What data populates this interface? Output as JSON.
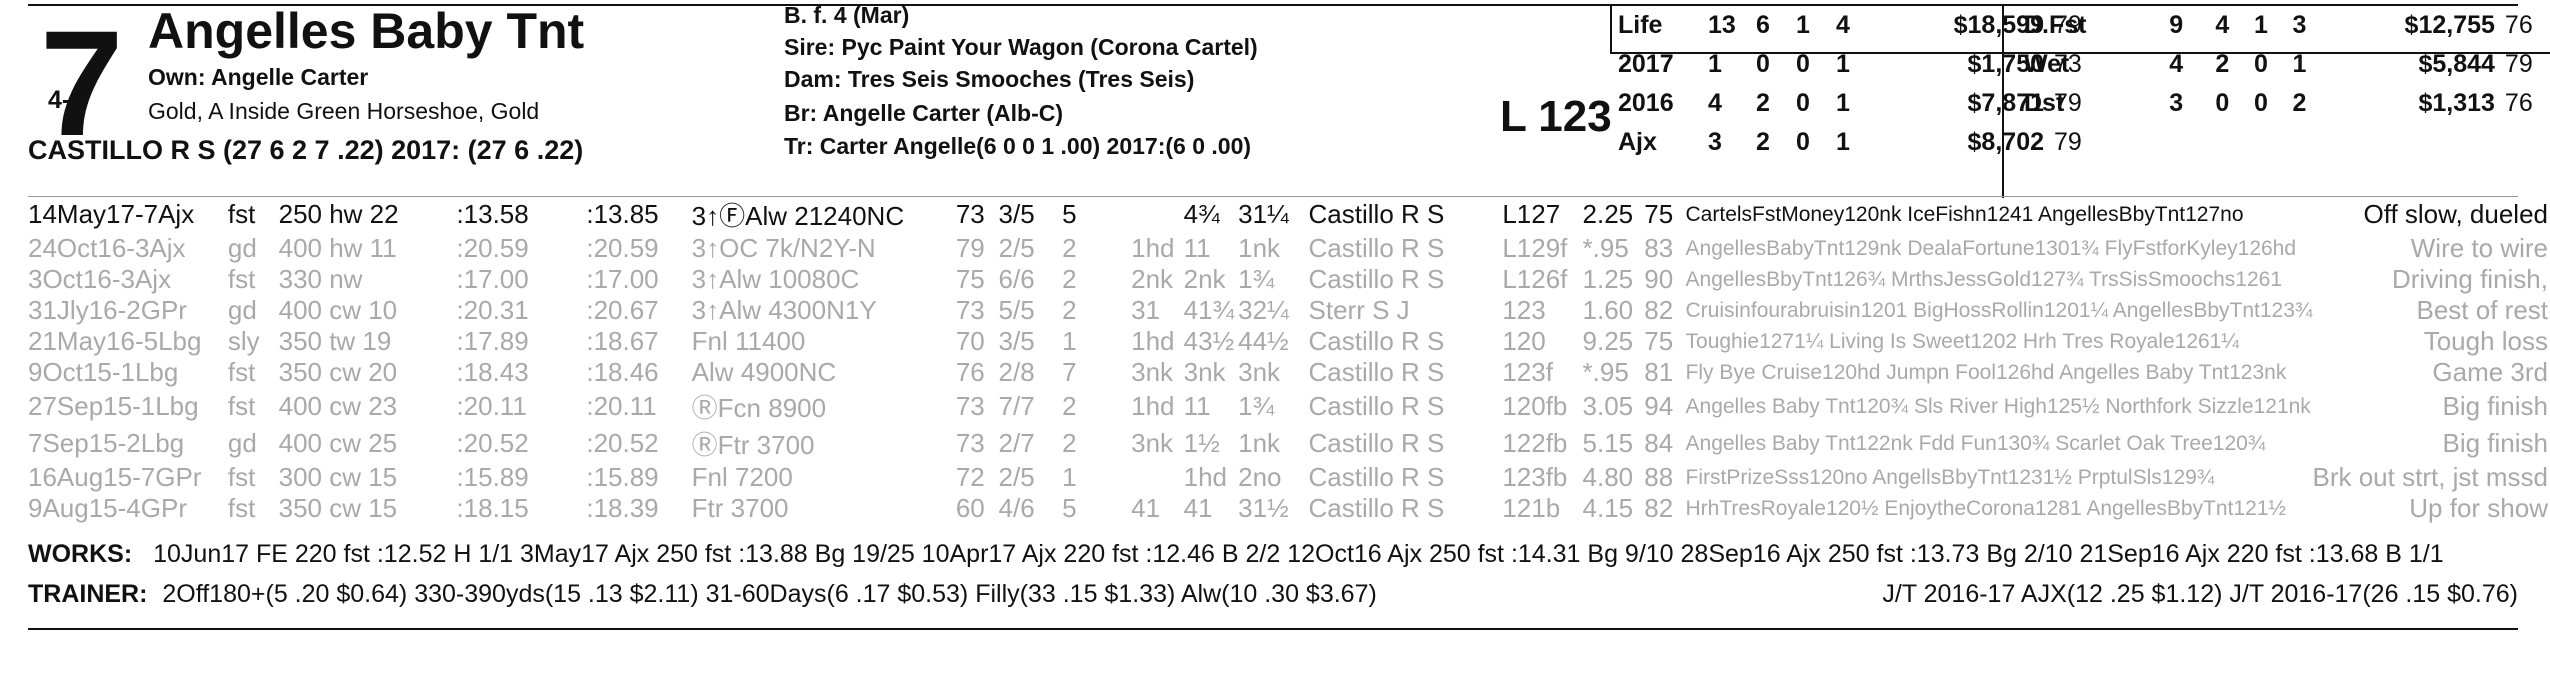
{
  "horse": {
    "program_number": "7",
    "odds": "4-1",
    "name": "Angelles Baby Tnt",
    "owner": "Own: Angelle Carter",
    "silks": "Gold, A Inside Green Horseshoe, Gold",
    "jockey": "CASTILLO R S (27 6 2 7 .22) 2017: (27 6 .22)"
  },
  "pedigree": {
    "sex_age": "B. f. 4 (Mar)",
    "sire": "Sire: Pyc Paint Your Wagon (Corona Cartel)",
    "dam": "Dam: Tres Seis Smooches (Tres Seis)",
    "breeder": "Br:   Angelle Carter (Alb-C)",
    "trainer": "Tr:   Carter Angelle(6 0 0 1 .00)  2017:(6 0 .00)"
  },
  "weight": "L 123",
  "stats_left": [
    {
      "label": "Life",
      "starts": "13",
      "w": "6",
      "p": "1",
      "s": "4",
      "earn": "$18,599",
      "rating": "79"
    },
    {
      "label": "2017",
      "starts": "1",
      "w": "0",
      "p": "0",
      "s": "1",
      "earn": "$1,750",
      "rating": "73"
    },
    {
      "label": "2016",
      "starts": "4",
      "w": "2",
      "p": "0",
      "s": "1",
      "earn": "$7,871",
      "rating": "79"
    },
    {
      "label": "Ajx",
      "starts": "3",
      "w": "2",
      "p": "0",
      "s": "1",
      "earn": "$8,702",
      "rating": "79"
    }
  ],
  "stats_right": [
    {
      "label": "D.Fst",
      "starts": "9",
      "w": "4",
      "p": "1",
      "s": "3",
      "earn": "$12,755",
      "rating": "76"
    },
    {
      "label": "Wet",
      "starts": "4",
      "w": "2",
      "p": "0",
      "s": "1",
      "earn": "$5,844",
      "rating": "79"
    },
    {
      "label": "Dst",
      "starts": "3",
      "w": "0",
      "p": "0",
      "s": "2",
      "earn": "$1,313",
      "rating": "76"
    }
  ],
  "past_performances": [
    {
      "date": "14May17-7Ajx",
      "cond": "fst",
      "dist": "250 hw 22",
      "f1": ":13.58",
      "f2": ":13.85",
      "race": "3↑ⒻAlw 21240NC",
      "sr": "73",
      "pp": "3/5",
      "st": "5",
      "c1": "",
      "c2": "4¾",
      "fin": "31¼",
      "jockey": "Castillo R S",
      "wt": "L127",
      "odds": "2.25",
      "sp": "75",
      "top": "CartelsFstMoney120nk IceFishn1241 AngellesBbyTnt127no",
      "comment": "Off slow, dueled"
    },
    {
      "date": "24Oct16-3Ajx",
      "cond": "gd",
      "dist": "400 hw 11",
      "f1": ":20.59",
      "f2": ":20.59",
      "race": "3↑OC 7k/N2Y-N",
      "sr": "79",
      "pp": "2/5",
      "st": "2",
      "c1": "1hd",
      "c2": "11",
      "fin": "1nk",
      "jockey": "Castillo R S",
      "wt": "L129f",
      "odds": "*.95",
      "sp": "83",
      "top": "AngellesBabyTnt129nk DealaFortune1301¾ FlyFstforKyley126hd",
      "comment": "Wire to wire"
    },
    {
      "date": "3Oct16-3Ajx",
      "cond": "fst",
      "dist": "330 nw",
      "f1": ":17.00",
      "f2": ":17.00",
      "race": "3↑Alw 10080C",
      "sr": "75",
      "pp": "6/6",
      "st": "2",
      "c1": "2nk",
      "c2": "2nk",
      "fin": "1¾",
      "jockey": "Castillo R S",
      "wt": "L126f",
      "odds": "1.25",
      "sp": "90",
      "top": "AngellesBbyTnt126¾ MrthsJessGold127¾ TrsSisSmoochs1261",
      "comment": "Driving finish,"
    },
    {
      "date": "31Jly16-2GPr",
      "cond": "gd",
      "dist": "400 cw 10",
      "f1": ":20.31",
      "f2": ":20.67",
      "race": "3↑Alw 4300N1Y",
      "sr": "73",
      "pp": "5/5",
      "st": "2",
      "c1": "31",
      "c2": "41¾",
      "fin": "32¼",
      "jockey": "Sterr S J",
      "wt": "123",
      "odds": "1.60",
      "sp": "82",
      "top": "Cruisinfourabruisin1201 BigHossRollin1201¼ AngellesBbyTnt123¾",
      "comment": "Best of rest"
    },
    {
      "date": "21May16-5Lbg",
      "cond": "sly",
      "dist": "350 tw 19",
      "f1": ":17.89",
      "f2": ":18.67",
      "race": "Fnl 11400",
      "sr": "70",
      "pp": "3/5",
      "st": "1",
      "c1": "1hd",
      "c2": "43½",
      "fin": "44½",
      "jockey": "Castillo R S",
      "wt": "120",
      "odds": "9.25",
      "sp": "75",
      "top": "Toughie1271¼ Living Is Sweet1202 Hrh Tres Royale1261¼",
      "comment": "Tough loss"
    },
    {
      "date": "9Oct15-1Lbg",
      "cond": "fst",
      "dist": "350 cw 20",
      "f1": ":18.43",
      "f2": ":18.46",
      "race": "Alw 4900NC",
      "sr": "76",
      "pp": "2/8",
      "st": "7",
      "c1": "3nk",
      "c2": "3nk",
      "fin": "3nk",
      "jockey": "Castillo R S",
      "wt": "123f",
      "odds": "*.95",
      "sp": "81",
      "top": "Fly Bye Cruise120hd Jumpn Fool126hd Angelles Baby Tnt123nk",
      "comment": "Game 3rd"
    },
    {
      "date": "27Sep15-1Lbg",
      "cond": "fst",
      "dist": "400 cw 23",
      "f1": ":20.11",
      "f2": ":20.11",
      "race": "ⓇFcn 8900",
      "sr": "73",
      "pp": "7/7",
      "st": "2",
      "c1": "1hd",
      "c2": "11",
      "fin": "1¾",
      "jockey": "Castillo R S",
      "wt": "120fb",
      "odds": "3.05",
      "sp": "94",
      "top": "Angelles Baby Tnt120¾ Sls River High125½ Northfork Sizzle121nk",
      "comment": "Big finish"
    },
    {
      "date": "7Sep15-2Lbg",
      "cond": "gd",
      "dist": "400 cw 25",
      "f1": ":20.52",
      "f2": ":20.52",
      "race": "ⓇFtr 3700",
      "sr": "73",
      "pp": "2/7",
      "st": "2",
      "c1": "3nk",
      "c2": "1½",
      "fin": "1nk",
      "jockey": "Castillo R S",
      "wt": "122fb",
      "odds": "5.15",
      "sp": "84",
      "top": "Angelles Baby Tnt122nk Fdd Fun130¾ Scarlet Oak Tree120¾",
      "comment": "Big finish"
    },
    {
      "date": "16Aug15-7GPr",
      "cond": "fst",
      "dist": "300 cw 15",
      "f1": ":15.89",
      "f2": ":15.89",
      "race": "Fnl 7200",
      "sr": "72",
      "pp": "2/5",
      "st": "1",
      "c1": "",
      "c2": "1hd",
      "fin": "2no",
      "jockey": "Castillo R S",
      "wt": "123fb",
      "odds": "4.80",
      "sp": "88",
      "top": "FirstPrizeSss120no AngellsBbyTnt1231½ PrptulSls129¾",
      "comment": "Brk out strt, jst mssd"
    },
    {
      "date": "9Aug15-4GPr",
      "cond": "fst",
      "dist": "350 cw 15",
      "f1": ":18.15",
      "f2": ":18.39",
      "race": "Ftr 3700",
      "sr": "60",
      "pp": "4/6",
      "st": "5",
      "c1": "41",
      "c2": "41",
      "fin": "31½",
      "jockey": "Castillo R S",
      "wt": "121b",
      "odds": "4.15",
      "sp": "82",
      "top": "HrhTresRoyale120½ EnjoytheCorona1281 AngellesBbyTnt121½",
      "comment": "Up for show"
    }
  ],
  "works": {
    "label": "WORKS:",
    "text": "10Jun17 FE 220 fst :12.52 H 1/1  3May17 Ajx 250 fst :13.88 Bg 19/25  10Apr17 Ajx 220 fst :12.46 B 2/2  12Oct16 Ajx 250 fst :14.31 Bg 9/10  28Sep16 Ajx 250 fst :13.73 Bg 2/10  21Sep16 Ajx 220 fst :13.68 B 1/1"
  },
  "trainer_line": {
    "label": "TRAINER:",
    "text": "2Off180+(5 .20 $0.64) 330-390yds(15 .13 $2.11) 31-60Days(6 .17 $0.53) Filly(33 .15 $1.33) Alw(10 .30 $3.67)",
    "jt": "J/T 2016-17 AJX(12 .25 $1.12)  J/T 2016-17(26 .15 $0.76)"
  }
}
